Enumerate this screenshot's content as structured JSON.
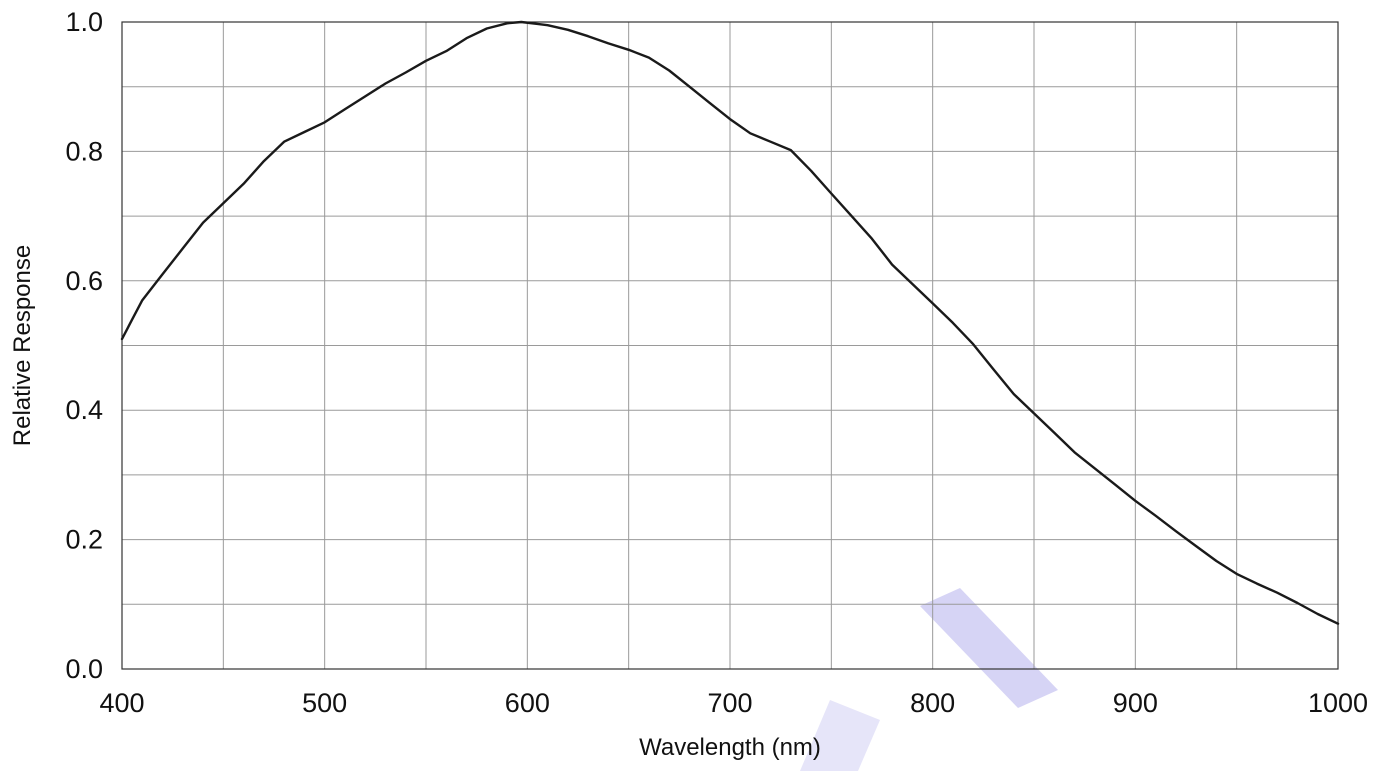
{
  "chart_data": {
    "type": "line",
    "title": "",
    "xlabel": "Wavelength (nm)",
    "ylabel": "Relative Response",
    "xlim": [
      400,
      1000
    ],
    "ylim": [
      0,
      1.0
    ],
    "xticks": [
      400,
      500,
      600,
      700,
      800,
      900,
      1000
    ],
    "yticks": [
      0.0,
      0.2,
      0.4,
      0.6,
      0.8,
      1.0
    ],
    "xtick_labels": [
      "400",
      "500",
      "600",
      "700",
      "800",
      "900",
      "1000"
    ],
    "ytick_labels": [
      "0.0",
      "0.2",
      "0.4",
      "0.6",
      "0.8",
      "1.0"
    ],
    "grid": true,
    "x_minor_grid_step": 50,
    "y_minor_grid_step": 0.1,
    "colors": {
      "line": "#1a1a1a",
      "grid": "#9a9a9a",
      "axes": "#333333",
      "watermark": "#c8c6f2"
    },
    "series": [
      {
        "values": [
          [
            400,
            0.51
          ],
          [
            405,
            0.54
          ],
          [
            410,
            0.57
          ],
          [
            420,
            0.61
          ],
          [
            430,
            0.65
          ],
          [
            440,
            0.69
          ],
          [
            450,
            0.72
          ],
          [
            460,
            0.75
          ],
          [
            470,
            0.785
          ],
          [
            480,
            0.815
          ],
          [
            490,
            0.83
          ],
          [
            500,
            0.845
          ],
          [
            510,
            0.865
          ],
          [
            520,
            0.885
          ],
          [
            530,
            0.905
          ],
          [
            540,
            0.922
          ],
          [
            550,
            0.94
          ],
          [
            560,
            0.955
          ],
          [
            570,
            0.975
          ],
          [
            580,
            0.99
          ],
          [
            590,
            0.998
          ],
          [
            597,
            1.0
          ],
          [
            605,
            0.997
          ],
          [
            610,
            0.995
          ],
          [
            620,
            0.988
          ],
          [
            630,
            0.978
          ],
          [
            640,
            0.967
          ],
          [
            650,
            0.957
          ],
          [
            660,
            0.945
          ],
          [
            670,
            0.925
          ],
          [
            680,
            0.9
          ],
          [
            690,
            0.875
          ],
          [
            700,
            0.85
          ],
          [
            710,
            0.828
          ],
          [
            720,
            0.815
          ],
          [
            730,
            0.802
          ],
          [
            740,
            0.77
          ],
          [
            750,
            0.735
          ],
          [
            760,
            0.7
          ],
          [
            770,
            0.665
          ],
          [
            780,
            0.625
          ],
          [
            790,
            0.595
          ],
          [
            800,
            0.565
          ],
          [
            810,
            0.535
          ],
          [
            820,
            0.502
          ],
          [
            830,
            0.463
          ],
          [
            840,
            0.425
          ],
          [
            850,
            0.395
          ],
          [
            860,
            0.365
          ],
          [
            870,
            0.335
          ],
          [
            880,
            0.31
          ],
          [
            890,
            0.285
          ],
          [
            900,
            0.26
          ],
          [
            910,
            0.237
          ],
          [
            920,
            0.213
          ],
          [
            930,
            0.19
          ],
          [
            940,
            0.167
          ],
          [
            950,
            0.147
          ],
          [
            960,
            0.132
          ],
          [
            970,
            0.118
          ],
          [
            980,
            0.102
          ],
          [
            990,
            0.085
          ],
          [
            1000,
            0.07
          ]
        ]
      }
    ]
  }
}
